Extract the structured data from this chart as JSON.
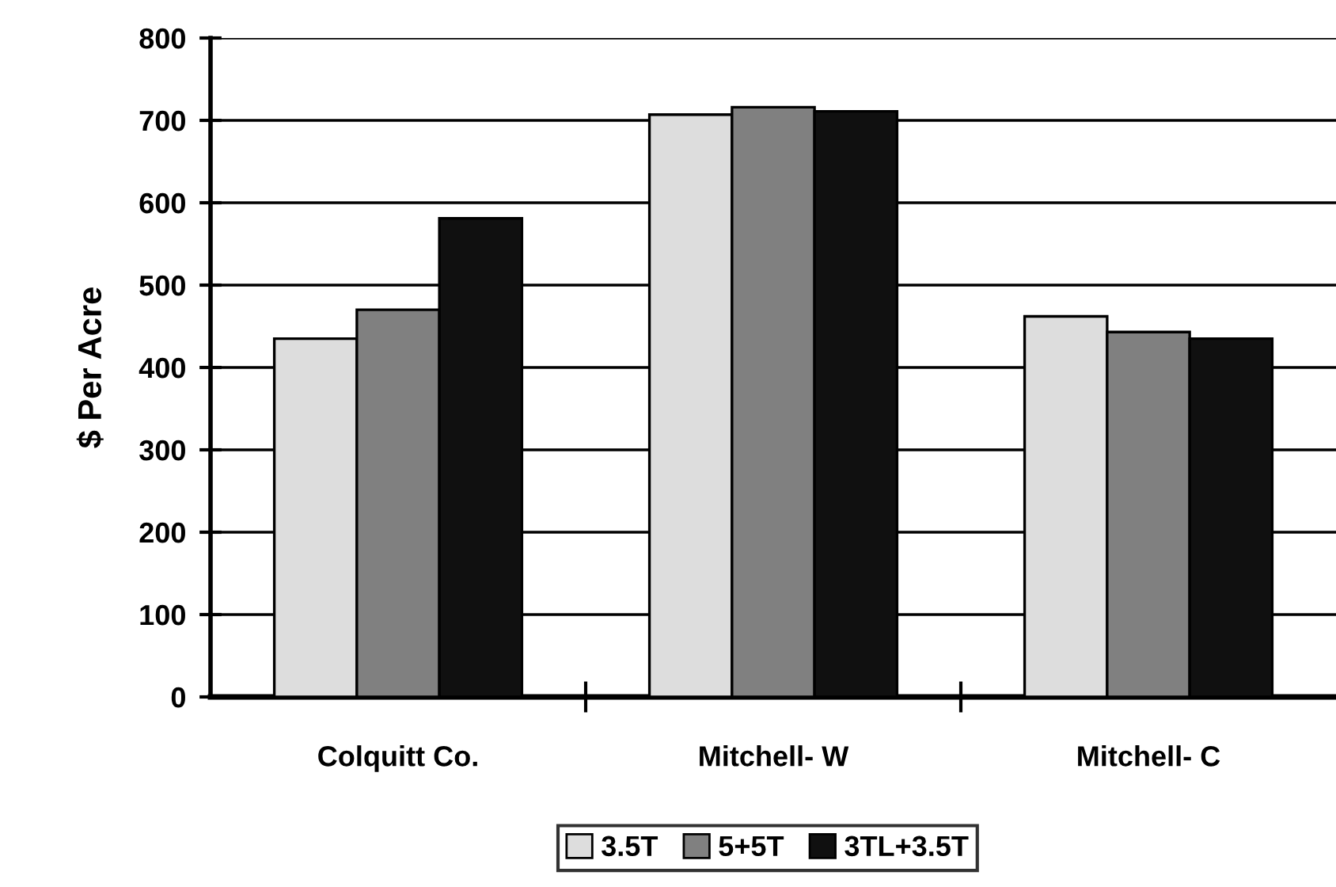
{
  "chart_data": {
    "type": "bar",
    "ylabel": "$ Per Acre",
    "categories": [
      "Colquitt Co.",
      "Mitchell- W",
      "Mitchell- C"
    ],
    "series": [
      {
        "name": "3.5T",
        "color": "#dddddd",
        "values": [
          435,
          707,
          462
        ]
      },
      {
        "name": "5+5T",
        "color": "#808080",
        "values": [
          470,
          716,
          443
        ]
      },
      {
        "name": "3TL+3.5T",
        "color": "#101010",
        "values": [
          581,
          711,
          435
        ]
      }
    ],
    "ylim": [
      0,
      800
    ],
    "yticks": [
      0,
      100,
      200,
      300,
      400,
      500,
      600,
      700,
      800
    ],
    "grid": "y",
    "legend": "bottom"
  }
}
